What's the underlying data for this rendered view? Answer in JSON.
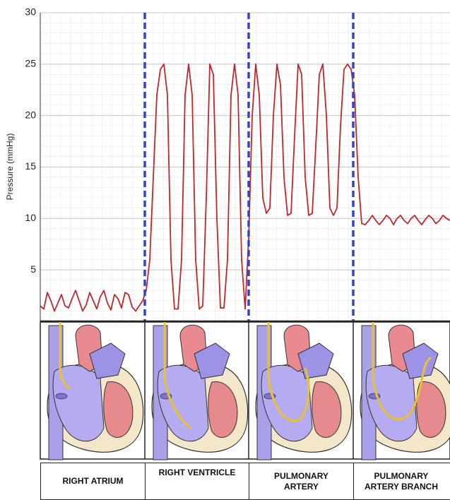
{
  "chart_data": {
    "type": "line",
    "y_label": "Pressure (mmHg)",
    "ylim": [
      0,
      30
    ],
    "yticks": [
      5,
      10,
      15,
      20,
      25,
      30
    ],
    "grid": true,
    "series": [
      {
        "color": "#c0272d",
        "values": [
          1.5,
          1.2,
          2.8,
          2.0,
          1.0,
          1.8,
          2.6,
          1.5,
          1.3,
          2.2,
          3.0,
          2.0,
          1.0,
          1.6,
          2.8,
          2.0,
          1.2,
          2.4,
          3.0,
          1.8,
          1.1,
          2.6,
          2.2,
          1.3,
          2.8,
          2.6,
          1.4,
          1.0,
          1.5,
          2.0,
          3,
          6,
          14,
          22,
          24.5,
          25,
          22,
          6,
          1.2,
          1.2,
          6,
          22,
          25,
          22,
          6,
          1.2,
          1.5,
          12,
          25,
          24,
          10,
          1.3,
          1.3,
          6,
          22,
          25,
          22,
          6,
          1.2,
          8,
          20,
          25,
          22,
          12,
          10.5,
          11,
          20,
          25,
          23,
          14,
          10.3,
          10.5,
          18,
          25,
          24,
          14,
          10.3,
          10.5,
          17,
          24,
          25,
          20,
          11,
          10.3,
          11,
          19,
          24.5,
          25,
          24.5,
          22,
          14,
          9.5,
          9.4,
          9.8,
          10.3,
          9.8,
          9.4,
          9.8,
          10.3,
          10,
          9.4,
          10,
          10.3,
          9.8,
          9.5,
          10,
          10.3,
          9.8,
          9.4,
          9.9,
          10.3,
          10,
          9.5,
          9.8,
          10.3,
          10,
          9.8
        ]
      }
    ],
    "stages": [
      "RIGHT ATRIUM",
      "RIGHT VENTRICLE",
      "PULMONARY ARTERY",
      "PULMONARY ARTERY BRANCH"
    ]
  }
}
